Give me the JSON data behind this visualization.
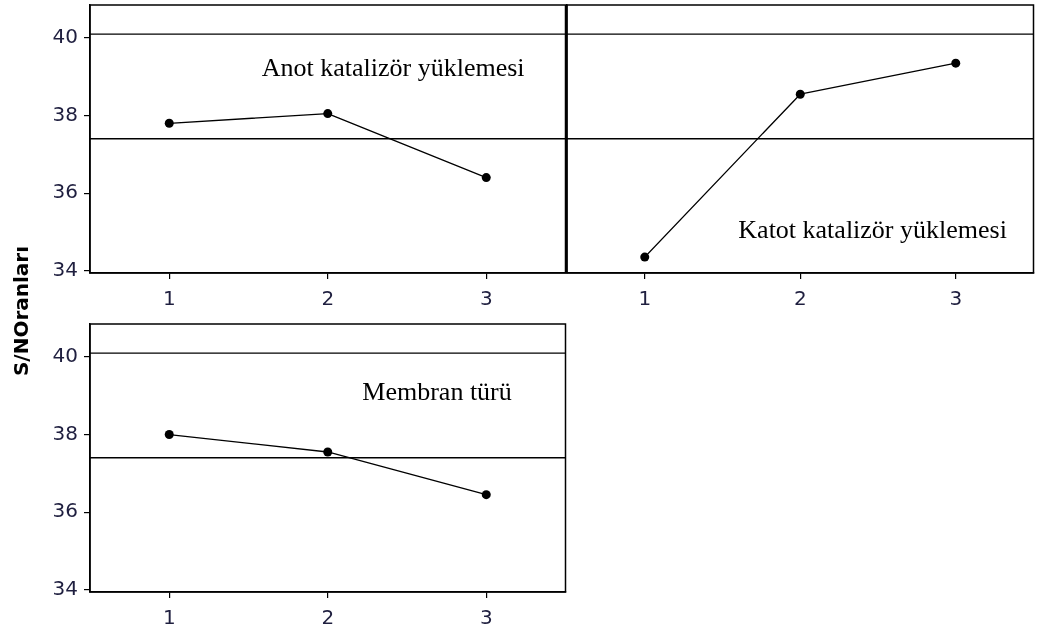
{
  "chart_data": [
    {
      "type": "line",
      "title": "Anot katalizör yüklemesi",
      "ylabel": "S/NOranları",
      "categories": [
        "1",
        "2",
        "3"
      ],
      "values": [
        37.8,
        38.05,
        36.4
      ],
      "color": "#000000",
      "ylim": [
        33.94,
        40.85
      ],
      "yticks": [
        34,
        36,
        38,
        40
      ],
      "grid": false,
      "legend": false,
      "marker": "circle",
      "line_style": "solid",
      "ref_lines": [
        {
          "axis": "y",
          "value": 37.4,
          "color": "#000000"
        },
        {
          "axis": "y",
          "value": 40.1,
          "color": "#000000"
        }
      ]
    },
    {
      "type": "line",
      "title": "Katot katalizör yüklemesi",
      "categories": [
        "1",
        "2",
        "3"
      ],
      "values": [
        34.35,
        38.55,
        39.35
      ],
      "color": "#000000",
      "ylim": [
        33.94,
        40.85
      ],
      "yticks": [
        34,
        36,
        38,
        40
      ],
      "tick_labels": "x",
      "grid": false,
      "legend": false,
      "marker": "circle",
      "line_style": "solid",
      "ref_lines": [
        {
          "axis": "y",
          "value": 37.4,
          "color": "#000000"
        },
        {
          "axis": "y",
          "value": 40.1,
          "color": "#000000"
        }
      ]
    },
    {
      "type": "line",
      "title": "Membran türü",
      "categories": [
        "1",
        "2",
        "3"
      ],
      "values": [
        38.0,
        37.55,
        36.45
      ],
      "color": "#000000",
      "ylim": [
        33.94,
        40.85
      ],
      "yticks": [
        34,
        36,
        38,
        40
      ],
      "grid": false,
      "legend": false,
      "marker": "circle",
      "line_style": "solid",
      "ref_lines": [
        {
          "axis": "y",
          "value": 37.4,
          "color": "#000000"
        },
        {
          "axis": "y",
          "value": 40.1,
          "color": "#000000"
        }
      ]
    }
  ]
}
